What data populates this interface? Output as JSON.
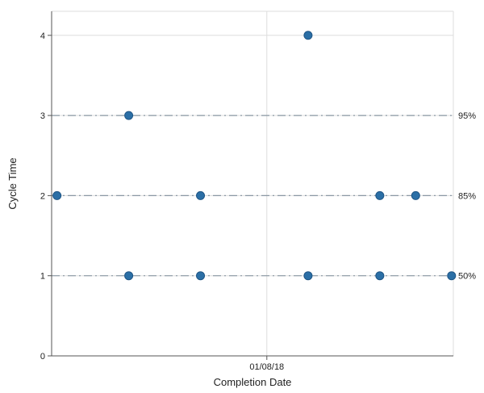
{
  "chart_data": {
    "type": "scatter",
    "xlabel": "Completion Date",
    "ylabel": "Cycle Time",
    "x_ticks": [
      {
        "value": 6,
        "label": "01/08/18"
      }
    ],
    "xlim": [
      0,
      11.2
    ],
    "ylim": [
      0,
      4.3
    ],
    "y_ticks": [
      0,
      1,
      2,
      3,
      4
    ],
    "grid": true,
    "points": [
      {
        "x": 0.15,
        "y": 2
      },
      {
        "x": 2.15,
        "y": 3
      },
      {
        "x": 2.15,
        "y": 1
      },
      {
        "x": 4.15,
        "y": 2
      },
      {
        "x": 4.15,
        "y": 1
      },
      {
        "x": 7.15,
        "y": 4
      },
      {
        "x": 7.15,
        "y": 1
      },
      {
        "x": 9.15,
        "y": 2
      },
      {
        "x": 9.15,
        "y": 1
      },
      {
        "x": 10.15,
        "y": 2
      },
      {
        "x": 11.15,
        "y": 1
      }
    ],
    "percentile_lines": [
      {
        "value": 3,
        "label": "95%"
      },
      {
        "value": 2,
        "label": "85%"
      },
      {
        "value": 1,
        "label": "50%"
      }
    ],
    "colors": {
      "point": "#2b6fa6",
      "point_stroke": "#1f5585",
      "grid": "#dddddd",
      "axis": "#555555",
      "percentile_line": "#8a97a3"
    }
  }
}
